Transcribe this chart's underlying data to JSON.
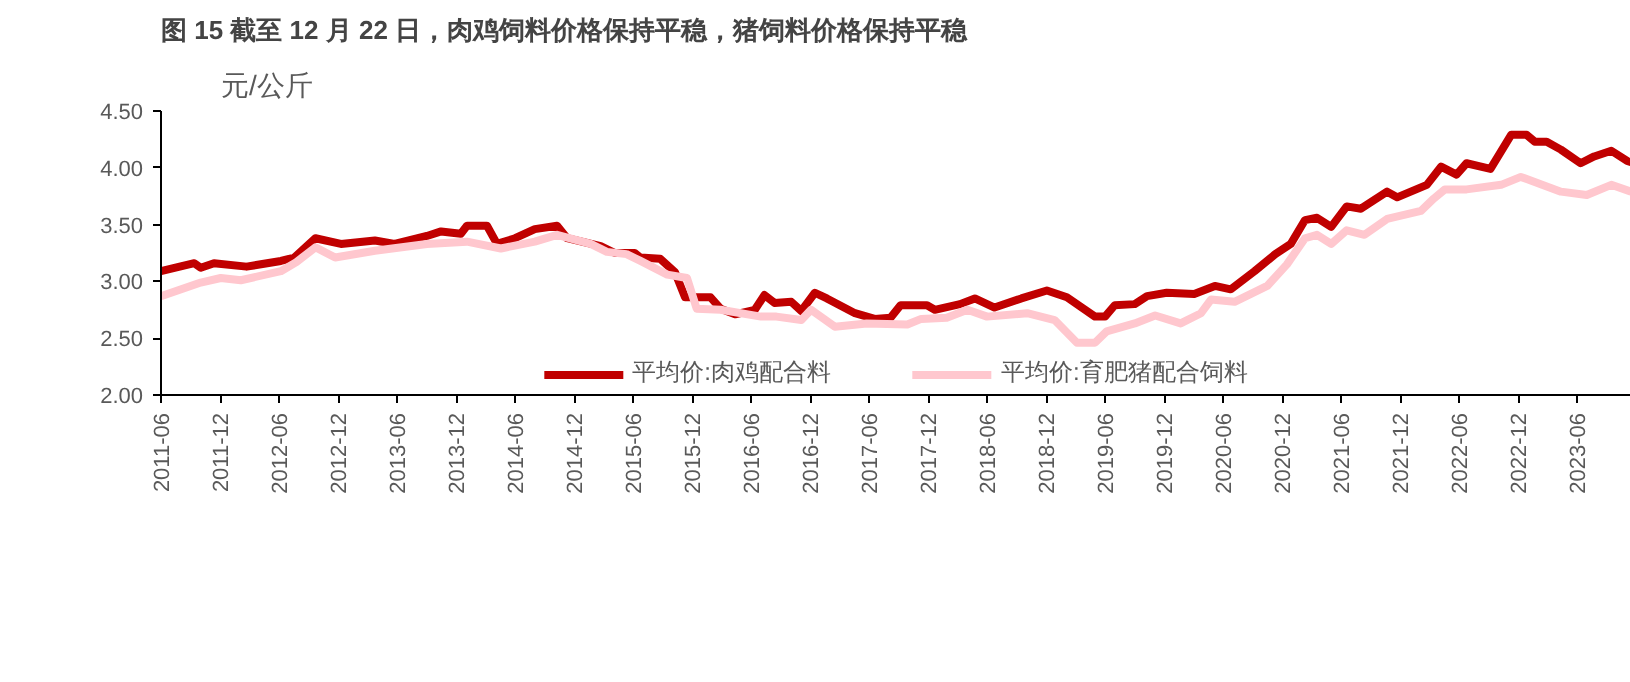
{
  "chart_data": {
    "type": "line",
    "title": "图 15 截至 12 月 22 日，肉鸡饲料价格保持平稳，猪饲料价格保持平稳",
    "ylabel": "元/公斤",
    "xlim": [
      "2011-06-01",
      "2023-11-15"
    ],
    "xticks": [
      "2011-06",
      "2011-12",
      "2012-06",
      "2012-12",
      "2013-06",
      "2013-12",
      "2014-06",
      "2014-12",
      "2015-06",
      "2015-12",
      "2016-06",
      "2016-12",
      "2017-06",
      "2017-12",
      "2018-06",
      "2018-12",
      "2019-06",
      "2019-12",
      "2020-06",
      "2020-12",
      "2021-06",
      "2021-12",
      "2022-06",
      "2022-12",
      "2023-06"
    ],
    "ylim": [
      2.0,
      4.5
    ],
    "yticks": [
      {
        "value": 2.0,
        "label": "2.00"
      },
      {
        "value": 2.5,
        "label": "2.50"
      },
      {
        "value": 3.0,
        "label": "3.00"
      },
      {
        "value": 3.5,
        "label": "3.50"
      },
      {
        "value": 4.0,
        "label": "4.00"
      },
      {
        "value": 4.5,
        "label": "4.50"
      }
    ],
    "grid": false,
    "legend": "bottom",
    "marker": "none",
    "line_style": "solid",
    "series": [
      {
        "name": "平均价:肉鸡配合料",
        "color": "#c00000",
        "x": [
          "2011-06-01",
          "2011-09-12",
          "2011-10-02",
          "2011-11-12",
          "2012-02-21",
          "2012-06-06",
          "2012-07-18",
          "2012-09-21",
          "2012-12-09",
          "2013-03-24",
          "2013-05-24",
          "2013-09-01",
          "2013-10-15",
          "2013-12-15",
          "2014-01-03",
          "2014-03-06",
          "2014-04-06",
          "2014-06-01",
          "2014-08-01",
          "2014-10-09",
          "2014-11-09",
          "2015-02-21",
          "2015-04-06",
          "2015-06-06",
          "2015-06-24",
          "2015-08-24",
          "2015-10-09",
          "2015-11-09",
          "2016-01-27",
          "2016-02-27",
          "2016-04-12",
          "2016-06-12",
          "2016-07-12",
          "2016-08-12",
          "2016-10-03",
          "2016-11-03",
          "2016-12-15",
          "2017-01-21",
          "2017-04-18",
          "2017-06-18",
          "2017-08-06",
          "2017-09-06",
          "2017-11-27",
          "2017-12-21",
          "2018-03-09",
          "2018-04-24",
          "2018-06-24",
          "2018-09-15",
          "2018-12-03",
          "2019-02-03",
          "2019-05-01",
          "2019-06-01",
          "2019-07-01",
          "2019-09-01",
          "2019-10-09",
          "2019-12-09",
          "2020-03-03",
          "2020-05-06",
          "2020-06-24",
          "2020-09-06",
          "2020-11-09",
          "2020-12-27",
          "2021-02-09",
          "2021-03-18",
          "2021-05-01",
          "2021-06-18",
          "2021-08-01",
          "2021-10-21",
          "2021-11-21",
          "2022-02-21",
          "2022-04-06",
          "2022-05-24",
          "2022-06-24",
          "2022-09-06",
          "2022-11-09",
          "2022-12-27",
          "2023-01-21",
          "2023-02-27",
          "2023-04-12",
          "2023-06-12",
          "2023-07-24",
          "2023-09-15",
          "2023-11-03",
          "2023-11-15"
        ],
        "values": [
          3.09,
          3.16,
          3.12,
          3.16,
          3.13,
          3.18,
          3.21,
          3.38,
          3.33,
          3.36,
          3.33,
          3.4,
          3.44,
          3.42,
          3.49,
          3.49,
          3.33,
          3.38,
          3.46,
          3.49,
          3.38,
          3.31,
          3.25,
          3.25,
          3.21,
          3.2,
          3.08,
          2.86,
          2.86,
          2.76,
          2.71,
          2.75,
          2.88,
          2.81,
          2.82,
          2.74,
          2.9,
          2.85,
          2.72,
          2.67,
          2.68,
          2.79,
          2.79,
          2.75,
          2.8,
          2.85,
          2.77,
          2.85,
          2.92,
          2.86,
          2.69,
          2.69,
          2.79,
          2.8,
          2.87,
          2.9,
          2.89,
          2.96,
          2.93,
          3.09,
          3.24,
          3.33,
          3.54,
          3.56,
          3.48,
          3.66,
          3.64,
          3.79,
          3.74,
          3.85,
          4.01,
          3.94,
          4.04,
          3.99,
          4.29,
          4.29,
          4.23,
          4.23,
          4.16,
          4.04,
          4.1,
          4.15,
          4.06,
          4.05
        ]
      },
      {
        "name": "平均价:育肥猪配合饲料",
        "color": "#ffc7ce",
        "x": [
          "2011-06-01",
          "2011-10-02",
          "2011-12-03",
          "2012-02-03",
          "2012-06-06",
          "2012-07-24",
          "2012-09-21",
          "2012-11-21",
          "2013-03-24",
          "2013-09-01",
          "2014-01-03",
          "2014-04-18",
          "2014-08-01",
          "2014-10-09",
          "2015-01-21",
          "2015-03-12",
          "2015-05-12",
          "2015-06-24",
          "2015-09-15",
          "2015-11-15",
          "2015-12-15",
          "2016-02-27",
          "2016-07-01",
          "2016-08-18",
          "2016-11-03",
          "2016-12-03",
          "2017-02-15",
          "2017-05-24",
          "2017-09-27",
          "2017-11-09",
          "2018-01-27",
          "2018-04-01",
          "2018-06-01",
          "2018-10-03",
          "2018-12-27",
          "2019-03-06",
          "2019-05-01",
          "2019-06-06",
          "2019-09-01",
          "2019-11-03",
          "2020-01-21",
          "2020-03-24",
          "2020-04-24",
          "2020-07-06",
          "2020-10-15",
          "2020-12-15",
          "2021-02-09",
          "2021-03-18",
          "2021-05-01",
          "2021-06-18",
          "2021-08-12",
          "2021-10-21",
          "2022-02-03",
          "2022-03-15",
          "2022-04-18",
          "2022-06-24",
          "2022-10-09",
          "2022-12-09",
          "2023-04-12",
          "2023-07-01",
          "2023-09-15",
          "2023-11-15"
        ],
        "values": [
          2.87,
          2.99,
          3.03,
          3.01,
          3.09,
          3.17,
          3.3,
          3.21,
          3.27,
          3.33,
          3.35,
          3.29,
          3.35,
          3.41,
          3.33,
          3.26,
          3.24,
          3.18,
          3.06,
          3.03,
          2.76,
          2.75,
          2.69,
          2.69,
          2.66,
          2.75,
          2.6,
          2.63,
          2.62,
          2.67,
          2.68,
          2.75,
          2.69,
          2.72,
          2.66,
          2.46,
          2.46,
          2.56,
          2.63,
          2.7,
          2.63,
          2.72,
          2.84,
          2.82,
          2.96,
          3.15,
          3.38,
          3.41,
          3.33,
          3.45,
          3.41,
          3.55,
          3.62,
          3.73,
          3.81,
          3.81,
          3.85,
          3.92,
          3.79,
          3.76,
          3.85,
          3.79
        ]
      }
    ]
  }
}
